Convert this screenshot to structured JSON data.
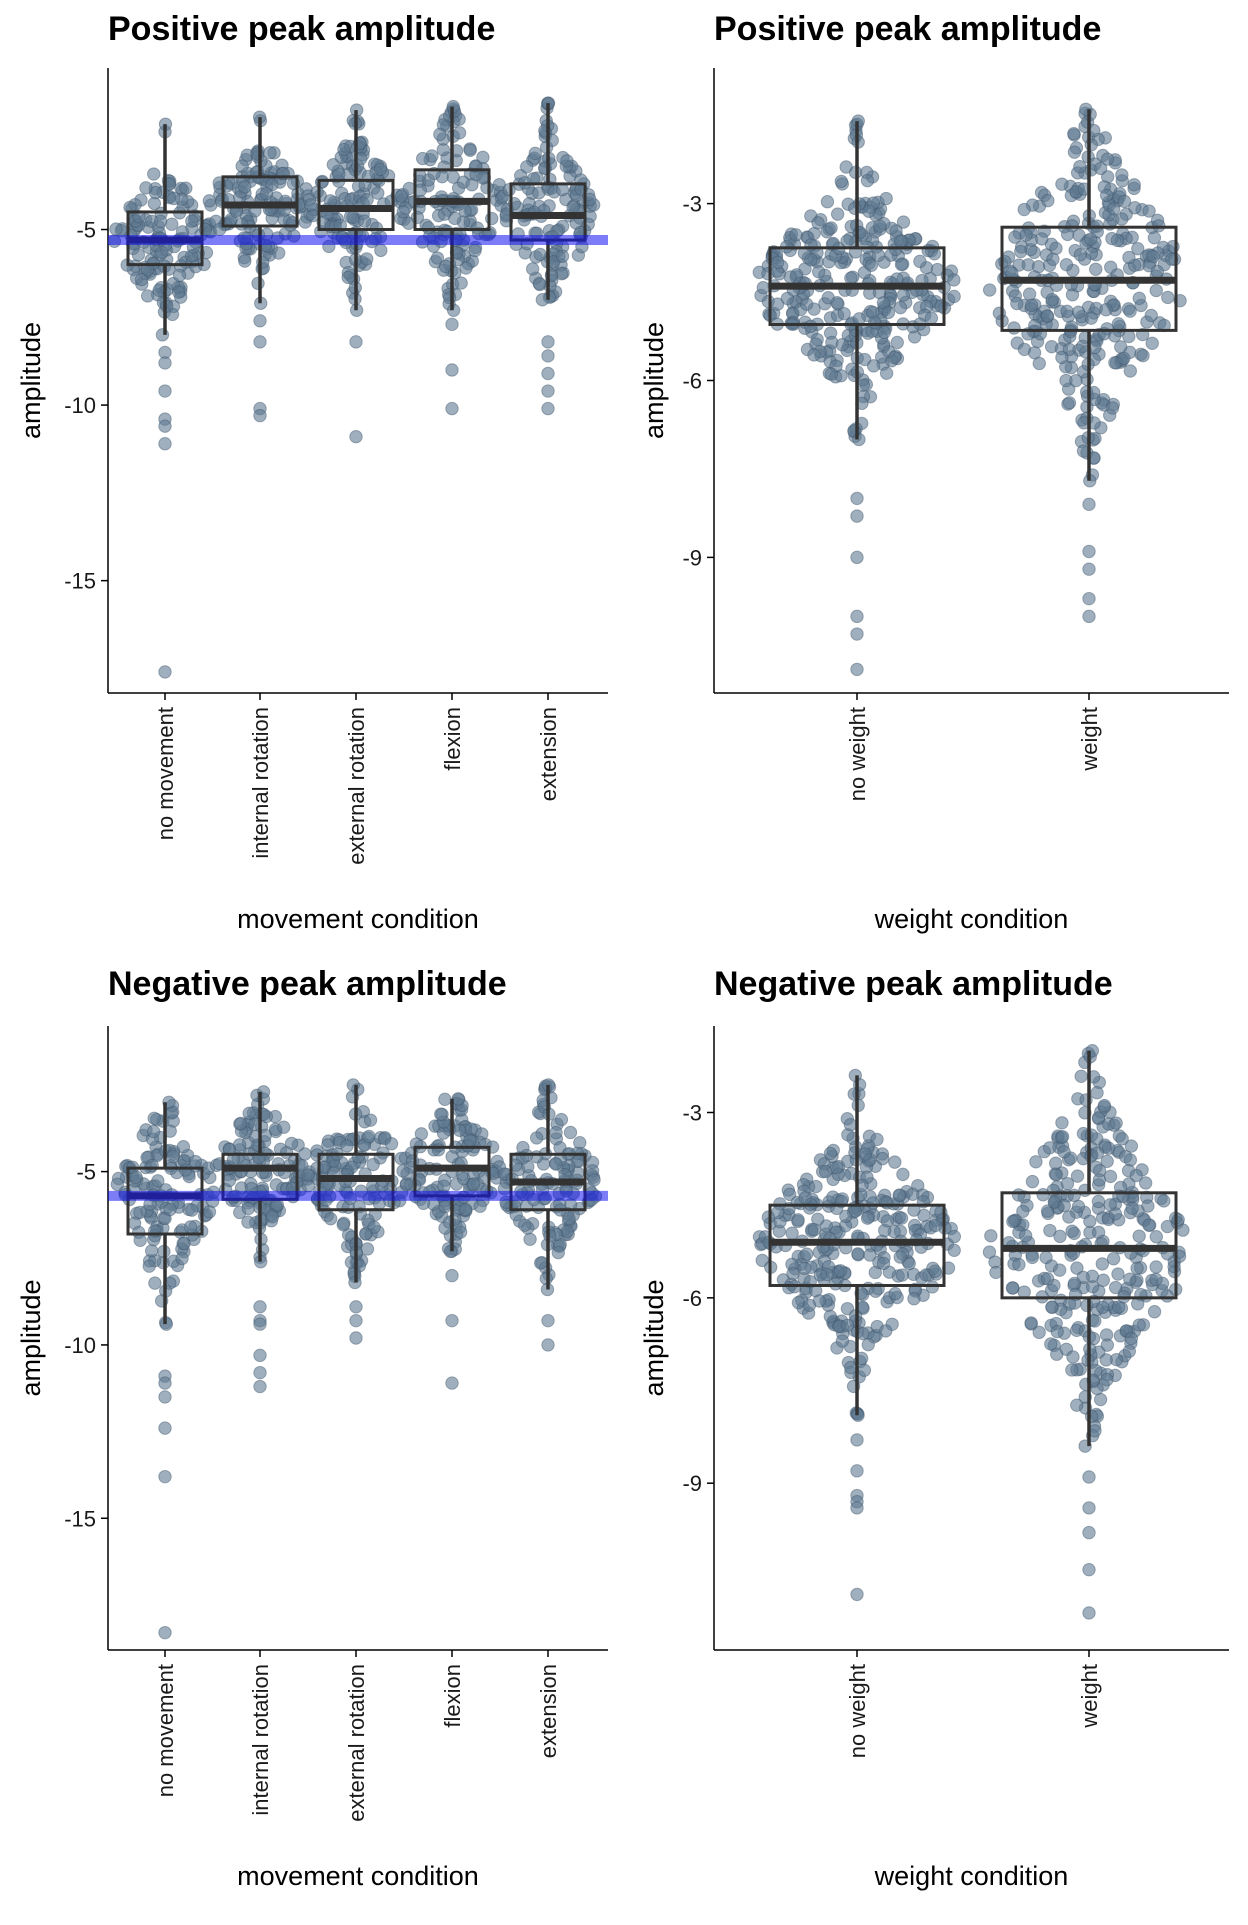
{
  "chart_data": [
    {
      "type": "box",
      "title": "Positive peak amplitude",
      "xlabel": "movement condition",
      "ylabel": "amplitude",
      "yticks": [
        -5,
        -10,
        -15
      ],
      "ylim": [
        -18.2,
        -0.4
      ],
      "hline": -5.3,
      "hline_color": "#1010ee",
      "point_color": "#5f7a91",
      "categories": [
        "no movement",
        "internal rotation",
        "external rotation",
        "flexion",
        "extension"
      ],
      "boxes": [
        {
          "min": -8.0,
          "q1": -6.0,
          "median": -5.3,
          "q3": -4.5,
          "max": -2.0,
          "outliers": [
            -8.5,
            -8.8,
            -9.6,
            -10.4,
            -10.6,
            -11.1,
            -17.6
          ]
        },
        {
          "min": -7.1,
          "q1": -4.9,
          "median": -4.3,
          "q3": -3.5,
          "max": -1.8,
          "outliers": [
            -7.6,
            -8.2,
            -10.1,
            -10.3
          ]
        },
        {
          "min": -7.3,
          "q1": -5.0,
          "median": -4.4,
          "q3": -3.6,
          "max": -1.6,
          "outliers": [
            -8.2,
            -10.9
          ]
        },
        {
          "min": -7.3,
          "q1": -5.0,
          "median": -4.2,
          "q3": -3.3,
          "max": -1.5,
          "outliers": [
            -7.7,
            -9.0,
            -10.1
          ]
        },
        {
          "min": -7.0,
          "q1": -5.3,
          "median": -4.6,
          "q3": -3.7,
          "max": -1.4,
          "outliers": [
            -8.2,
            -8.6,
            -9.1,
            -9.6,
            -10.1
          ]
        }
      ],
      "n_per_group": 130
    },
    {
      "type": "box",
      "title": "Positive peak amplitude",
      "xlabel": "weight condition",
      "ylabel": "amplitude",
      "yticks": [
        -3,
        -6,
        -9
      ],
      "ylim": [
        -11.3,
        -0.7
      ],
      "point_color": "#5f7a91",
      "categories": [
        "no weight",
        "weight"
      ],
      "boxes": [
        {
          "min": -7.0,
          "q1": -5.05,
          "median": -4.4,
          "q3": -3.75,
          "max": -1.6,
          "outliers": [
            -8.0,
            -8.3,
            -9.0,
            -10.0,
            -10.3,
            -10.9
          ]
        },
        {
          "min": -7.7,
          "q1": -5.15,
          "median": -4.3,
          "q3": -3.4,
          "max": -1.4,
          "outliers": [
            -8.1,
            -8.9,
            -9.2,
            -9.7,
            -10.0
          ]
        }
      ],
      "n_per_group": 300
    },
    {
      "type": "box",
      "title": "Negative peak amplitude",
      "xlabel": "movement condition",
      "ylabel": "amplitude",
      "yticks": [
        -5,
        -10,
        -15
      ],
      "ylim": [
        -18.8,
        -0.8
      ],
      "hline": -5.7,
      "hline_color": "#1010ee",
      "point_color": "#5f7a91",
      "categories": [
        "no movement",
        "internal rotation",
        "external rotation",
        "flexion",
        "extension"
      ],
      "boxes": [
        {
          "min": -9.4,
          "q1": -6.8,
          "median": -5.7,
          "q3": -4.9,
          "max": -3.0,
          "outliers": [
            -10.9,
            -11.1,
            -11.5,
            -12.4,
            -13.8,
            -18.3
          ]
        },
        {
          "min": -7.6,
          "q1": -5.8,
          "median": -4.9,
          "q3": -4.5,
          "max": -2.7,
          "outliers": [
            -8.9,
            -9.3,
            -9.4,
            -10.3,
            -10.8,
            -11.2
          ]
        },
        {
          "min": -8.2,
          "q1": -6.1,
          "median": -5.2,
          "q3": -4.5,
          "max": -2.5,
          "outliers": [
            -8.9,
            -9.3,
            -9.8
          ]
        },
        {
          "min": -7.3,
          "q1": -5.7,
          "median": -4.9,
          "q3": -4.3,
          "max": -2.9,
          "outliers": [
            -8.0,
            -9.3,
            -11.1
          ]
        },
        {
          "min": -8.4,
          "q1": -6.1,
          "median": -5.3,
          "q3": -4.5,
          "max": -2.5,
          "outliers": [
            -9.3,
            -10.0
          ]
        }
      ],
      "n_per_group": 130
    },
    {
      "type": "box",
      "title": "Negative peak amplitude",
      "xlabel": "weight condition",
      "ylabel": "amplitude",
      "yticks": [
        -3,
        -6,
        -9
      ],
      "ylim": [
        -11.7,
        -1.6
      ],
      "point_color": "#5f7a91",
      "categories": [
        "no weight",
        "weight"
      ],
      "boxes": [
        {
          "min": -7.9,
          "q1": -5.8,
          "median": -5.1,
          "q3": -4.5,
          "max": -2.4,
          "outliers": [
            -8.3,
            -8.8,
            -9.2,
            -9.3,
            -9.4,
            -10.8
          ]
        },
        {
          "min": -8.4,
          "q1": -6.0,
          "median": -5.2,
          "q3": -4.3,
          "max": -2.0,
          "outliers": [
            -8.9,
            -9.4,
            -9.8,
            -10.4,
            -11.1
          ]
        }
      ],
      "n_per_group": 300
    }
  ]
}
